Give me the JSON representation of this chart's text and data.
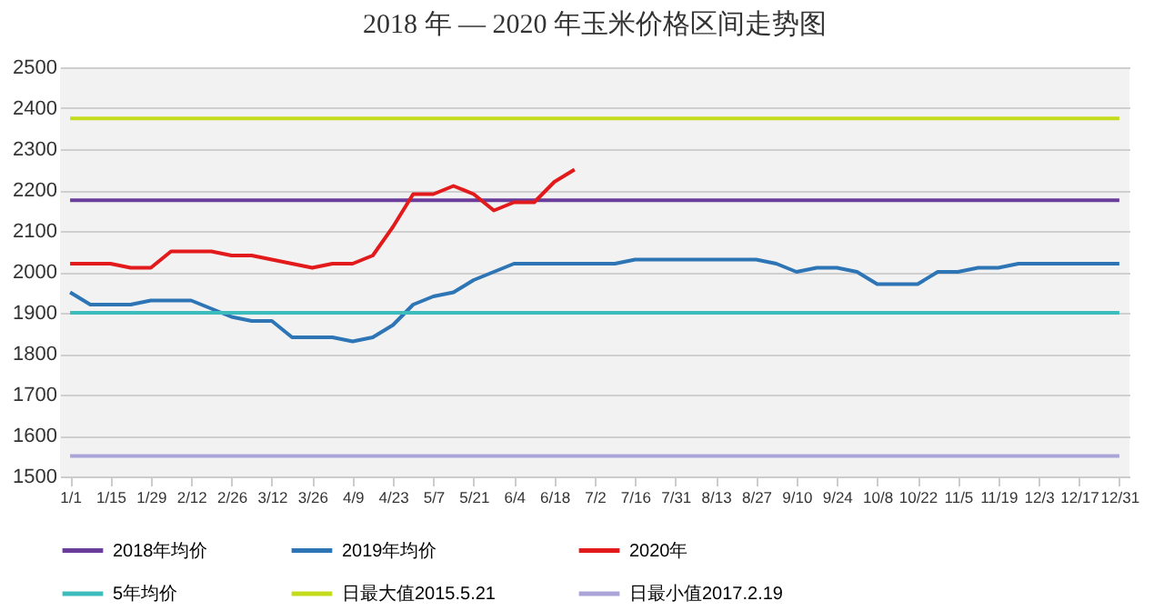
{
  "chart_data": {
    "type": "line",
    "title": "2018 年 — 2020 年玉米价格区间走势图",
    "categories": [
      "1/1",
      null,
      "1/15",
      null,
      "1/29",
      null,
      "2/12",
      null,
      "2/26",
      null,
      "3/12",
      null,
      "3/26",
      null,
      "4/9",
      null,
      "4/23",
      null,
      "5/7",
      null,
      "5/21",
      null,
      "6/4",
      null,
      "6/18",
      null,
      "7/2",
      null,
      "7/16",
      null,
      "7/31",
      null,
      "8/13",
      null,
      "8/27",
      null,
      "9/10",
      null,
      "9/24",
      null,
      "10/8",
      null,
      "10/22",
      null,
      "11/5",
      null,
      "11/19",
      null,
      "12/3",
      null,
      "12/17",
      null,
      "12/31"
    ],
    "series": [
      {
        "name": "2018年均价",
        "color": "#6a3d9a",
        "values": [
          2175,
          2175,
          2175,
          2175,
          2175,
          2175,
          2175,
          2175,
          2175,
          2175,
          2175,
          2175,
          2175,
          2175,
          2175,
          2175,
          2175,
          2175,
          2175,
          2175,
          2175,
          2175,
          2175,
          2175,
          2175,
          2175,
          2175,
          2175,
          2175,
          2175,
          2175,
          2175,
          2175,
          2175,
          2175,
          2175,
          2175,
          2175,
          2175,
          2175,
          2175,
          2175,
          2175,
          2175,
          2175,
          2175,
          2175,
          2175,
          2175,
          2175,
          2175,
          2175,
          2175
        ]
      },
      {
        "name": "2019年均价",
        "color": "#2e75b6",
        "values": [
          1950,
          1920,
          1920,
          1920,
          1930,
          1930,
          1930,
          1910,
          1890,
          1880,
          1880,
          1840,
          1840,
          1840,
          1830,
          1840,
          1870,
          1920,
          1940,
          1950,
          1980,
          2000,
          2020,
          2020,
          2020,
          2020,
          2020,
          2020,
          2030,
          2030,
          2030,
          2030,
          2030,
          2030,
          2030,
          2020,
          2000,
          2010,
          2010,
          2000,
          1970,
          1970,
          1970,
          2000,
          2000,
          2010,
          2010,
          2020,
          2020,
          2020,
          2020,
          2020,
          2020
        ]
      },
      {
        "name": "2020年",
        "color": "#e31a1c",
        "values": [
          2020,
          2020,
          2020,
          2010,
          2010,
          2050,
          2050,
          2050,
          2040,
          2040,
          2030,
          2020,
          2010,
          2020,
          2020,
          2040,
          2110,
          2190,
          2190,
          2210,
          2190,
          2150,
          2170,
          2170,
          2220,
          2250,
          null,
          null,
          null,
          null,
          null,
          null,
          null,
          null,
          null,
          null,
          null,
          null,
          null,
          null,
          null,
          null,
          null,
          null,
          null,
          null,
          null,
          null,
          null,
          null,
          null,
          null,
          null
        ]
      },
      {
        "name": "5年均价",
        "color": "#3cbcbc",
        "values": [
          1900,
          1900,
          1900,
          1900,
          1900,
          1900,
          1900,
          1900,
          1900,
          1900,
          1900,
          1900,
          1900,
          1900,
          1900,
          1900,
          1900,
          1900,
          1900,
          1900,
          1900,
          1900,
          1900,
          1900,
          1900,
          1900,
          1900,
          1900,
          1900,
          1900,
          1900,
          1900,
          1900,
          1900,
          1900,
          1900,
          1900,
          1900,
          1900,
          1900,
          1900,
          1900,
          1900,
          1900,
          1900,
          1900,
          1900,
          1900,
          1900,
          1900,
          1900,
          1900,
          1900
        ]
      },
      {
        "name": "日最大值2015.5.21",
        "color": "#c5dc1c",
        "values": [
          2375,
          2375,
          2375,
          2375,
          2375,
          2375,
          2375,
          2375,
          2375,
          2375,
          2375,
          2375,
          2375,
          2375,
          2375,
          2375,
          2375,
          2375,
          2375,
          2375,
          2375,
          2375,
          2375,
          2375,
          2375,
          2375,
          2375,
          2375,
          2375,
          2375,
          2375,
          2375,
          2375,
          2375,
          2375,
          2375,
          2375,
          2375,
          2375,
          2375,
          2375,
          2375,
          2375,
          2375,
          2375,
          2375,
          2375,
          2375,
          2375,
          2375,
          2375,
          2375,
          2375
        ]
      },
      {
        "name": "日最小值2017.2.19",
        "color": "#aaa4d8",
        "values": [
          1550,
          1550,
          1550,
          1550,
          1550,
          1550,
          1550,
          1550,
          1550,
          1550,
          1550,
          1550,
          1550,
          1550,
          1550,
          1550,
          1550,
          1550,
          1550,
          1550,
          1550,
          1550,
          1550,
          1550,
          1550,
          1550,
          1550,
          1550,
          1550,
          1550,
          1550,
          1550,
          1550,
          1550,
          1550,
          1550,
          1550,
          1550,
          1550,
          1550,
          1550,
          1550,
          1550,
          1550,
          1550,
          1550,
          1550,
          1550,
          1550,
          1550,
          1550,
          1550,
          1550
        ]
      }
    ],
    "ylim": [
      1500,
      2500
    ],
    "yticks": [
      1500,
      1600,
      1700,
      1800,
      1900,
      2000,
      2100,
      2200,
      2300,
      2400,
      2500
    ],
    "grid": "y",
    "legend": "bottom"
  }
}
